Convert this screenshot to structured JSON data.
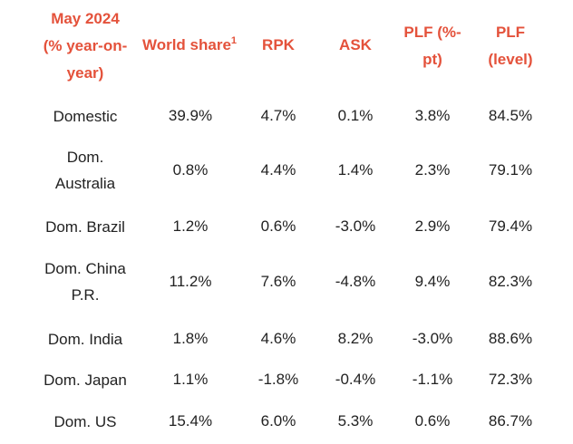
{
  "header": {
    "period_line1": "May 2024",
    "period_line2": "(% year-on-",
    "period_line3": "year)",
    "world_share": "World share",
    "world_share_footnote": "1",
    "rpk": "RPK",
    "ask": "ASK",
    "plf_pt_line1": "PLF (%-",
    "plf_pt_line2": "pt)",
    "plf_level_line1": "PLF",
    "plf_level_line2": "(level)"
  },
  "rows": [
    {
      "region": "Domestic",
      "world_share": "39.9%",
      "rpk": "4.7%",
      "ask": "0.1%",
      "plf_pt": "3.8%",
      "plf_level": "84.5%"
    },
    {
      "region": "Dom. Australia",
      "world_share": "0.8%",
      "rpk": "4.4%",
      "ask": "1.4%",
      "plf_pt": "2.3%",
      "plf_level": "79.1%"
    },
    {
      "region": "Dom. Brazil",
      "world_share": "1.2%",
      "rpk": "0.6%",
      "ask": "-3.0%",
      "plf_pt": "2.9%",
      "plf_level": "79.4%"
    },
    {
      "region": "Dom. China P.R.",
      "world_share": "11.2%",
      "rpk": "7.6%",
      "ask": "-4.8%",
      "plf_pt": "9.4%",
      "plf_level": "82.3%"
    },
    {
      "region": "Dom. India",
      "world_share": "1.8%",
      "rpk": "4.6%",
      "ask": "8.2%",
      "plf_pt": "-3.0%",
      "plf_level": "88.6%"
    },
    {
      "region": "Dom. Japan",
      "world_share": "1.1%",
      "rpk": "-1.8%",
      "ask": "-0.4%",
      "plf_pt": "-1.1%",
      "plf_level": "72.3%"
    },
    {
      "region": "Dom. US",
      "world_share": "15.4%",
      "rpk": "6.0%",
      "ask": "5.3%",
      "plf_pt": "0.6%",
      "plf_level": "86.7%"
    }
  ]
}
